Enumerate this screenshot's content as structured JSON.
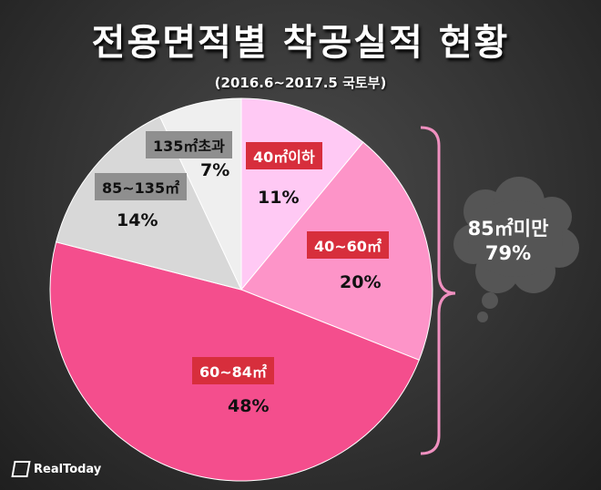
{
  "header": {
    "title": "전용면적별 착공실적 현황",
    "subtitle": "(2016.6~2017.5 국토부)"
  },
  "chart_data": {
    "type": "pie",
    "title": "전용면적별 착공실적 현황",
    "subtitle": "(2016.6~2017.5 국토부)",
    "slices": [
      {
        "label": "40㎡이하",
        "value": 11,
        "value_label": "11%",
        "color": "#ffc9f4"
      },
      {
        "label": "40~60㎡",
        "value": 20,
        "value_label": "20%",
        "color": "#fd94c8"
      },
      {
        "label": "60~84㎡",
        "value": 48,
        "value_label": "48%",
        "color": "#f44e8d"
      },
      {
        "label": "85~135㎡",
        "value": 14,
        "value_label": "14%",
        "color": "#d8d8d8"
      },
      {
        "label": "135㎡초과",
        "value": 7,
        "value_label": "7%",
        "color": "#efefef"
      }
    ],
    "annotation": {
      "line1": "85㎡미만",
      "line2": "79%"
    }
  },
  "colors": {
    "bracket": "#f090c0",
    "cloud": "#555555",
    "label_red": "#d72e3c",
    "label_gray": "#8f8f8f"
  },
  "brand": {
    "logo_text": "RealToday",
    "logo_icon": "realtoday-logo-icon"
  }
}
